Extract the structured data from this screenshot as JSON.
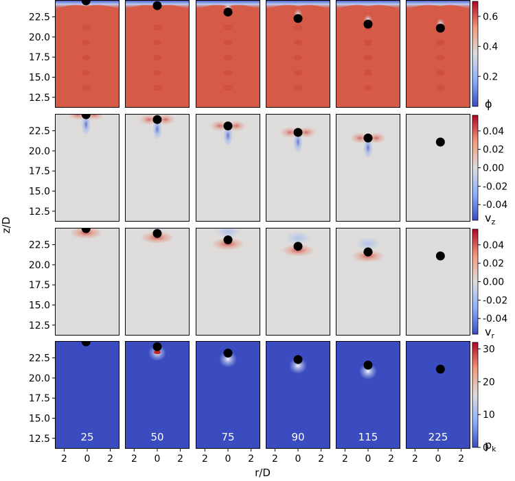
{
  "chart_data": {
    "type": "heatmap",
    "title": "",
    "xlabel": "r/D",
    "ylabel": "z/D",
    "xlim": [
      -2.8,
      2.8
    ],
    "ylim": [
      11.2,
      24.6
    ],
    "x_ticks": [
      {
        "value": -2,
        "label": "2"
      },
      {
        "value": 0,
        "label": "0"
      },
      {
        "value": 2,
        "label": "2"
      }
    ],
    "y_ticks": [
      {
        "value": 12.5,
        "label": "12.5"
      },
      {
        "value": 15.0,
        "label": "15.0"
      },
      {
        "value": 17.5,
        "label": "17.5"
      },
      {
        "value": 20.0,
        "label": "20.0"
      },
      {
        "value": 22.5,
        "label": "22.5"
      }
    ],
    "time_labels": [
      "25",
      "50",
      "75",
      "90",
      "115",
      "225"
    ],
    "sphere_positions": [
      {
        "r": -0.1,
        "z": 24.5
      },
      {
        "r": 0.0,
        "z": 23.9
      },
      {
        "r": 0.0,
        "z": 23.1
      },
      {
        "r": 0.0,
        "z": 22.3
      },
      {
        "r": 0.0,
        "z": 21.6
      },
      {
        "r": 0.2,
        "z": 21.1
      }
    ],
    "rows": [
      {
        "field": "phi",
        "colorbar_label": "ϕ",
        "colormap": "coolwarm",
        "range": [
          0.0,
          0.7
        ],
        "ticks": [
          {
            "value": 0.2,
            "label": "0.2"
          },
          {
            "value": 0.4,
            "label": "0.4"
          },
          {
            "value": 0.6,
            "label": "0.6"
          }
        ]
      },
      {
        "field": "v_z",
        "colorbar_label": "v",
        "colorbar_sub": "z",
        "colormap": "coolwarm",
        "range": [
          -0.057,
          0.057
        ],
        "ticks": [
          {
            "value": -0.04,
            "label": "-0.04"
          },
          {
            "value": -0.02,
            "label": "-0.02"
          },
          {
            "value": 0.0,
            "label": "0.00"
          },
          {
            "value": 0.02,
            "label": "0.02"
          },
          {
            "value": 0.04,
            "label": "0.04"
          }
        ]
      },
      {
        "field": "v_r",
        "colorbar_label": "v",
        "colorbar_sub": "r",
        "colormap": "coolwarm",
        "range": [
          -0.057,
          0.057
        ],
        "ticks": [
          {
            "value": -0.04,
            "label": "-0.04"
          },
          {
            "value": -0.02,
            "label": "-0.02"
          },
          {
            "value": 0.0,
            "label": "0.00"
          },
          {
            "value": 0.02,
            "label": "0.02"
          },
          {
            "value": 0.04,
            "label": "0.04"
          }
        ]
      },
      {
        "field": "p_k",
        "colorbar_label": "p",
        "colorbar_sub": "k",
        "colormap": "coolwarm",
        "range": [
          0,
          32
        ],
        "ticks": [
          {
            "value": 0,
            "label": "0"
          },
          {
            "value": 10,
            "label": "10"
          },
          {
            "value": 20,
            "label": "20"
          },
          {
            "value": 30,
            "label": "30"
          }
        ]
      }
    ]
  }
}
